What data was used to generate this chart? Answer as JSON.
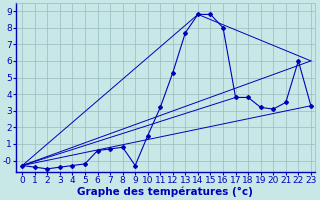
{
  "xlabel": "Graphe des températures (°c)",
  "xlim": [
    -0.5,
    23.3
  ],
  "ylim": [
    -0.7,
    9.5
  ],
  "yticks": [
    0,
    1,
    2,
    3,
    4,
    5,
    6,
    7,
    8,
    9
  ],
  "xticks": [
    0,
    1,
    2,
    3,
    4,
    5,
    6,
    7,
    8,
    9,
    10,
    11,
    12,
    13,
    14,
    15,
    16,
    17,
    18,
    19,
    20,
    21,
    22,
    23
  ],
  "background_color": "#c8e8e8",
  "line_color": "#0000bb",
  "grid_color": "#99bbbb",
  "main_curve": {
    "x": [
      0,
      1,
      2,
      3,
      4,
      5,
      6,
      7,
      8,
      9,
      10,
      11,
      12,
      13,
      14,
      15,
      16,
      17,
      18,
      19,
      20,
      21,
      22,
      23
    ],
    "y": [
      -0.3,
      -0.4,
      -0.5,
      -0.4,
      -0.3,
      -0.2,
      0.6,
      0.7,
      0.8,
      -0.3,
      1.5,
      3.2,
      5.3,
      7.7,
      8.8,
      8.8,
      8.0,
      3.8,
      3.8,
      3.2,
      3.1,
      3.5,
      6.0,
      3.3
    ]
  },
  "straight_lines": [
    {
      "x": [
        0,
        14
      ],
      "y": [
        -0.3,
        8.8
      ]
    },
    {
      "x": [
        0,
        23
      ],
      "y": [
        -0.3,
        6.0
      ]
    },
    {
      "x": [
        14,
        23
      ],
      "y": [
        8.8,
        6.0
      ]
    },
    {
      "x": [
        0,
        23
      ],
      "y": [
        -0.3,
        3.3
      ]
    },
    {
      "x": [
        0,
        17
      ],
      "y": [
        -0.3,
        3.8
      ]
    }
  ],
  "font_color": "#0000bb",
  "tick_fontsize": 6.5,
  "label_fontsize": 7.5
}
